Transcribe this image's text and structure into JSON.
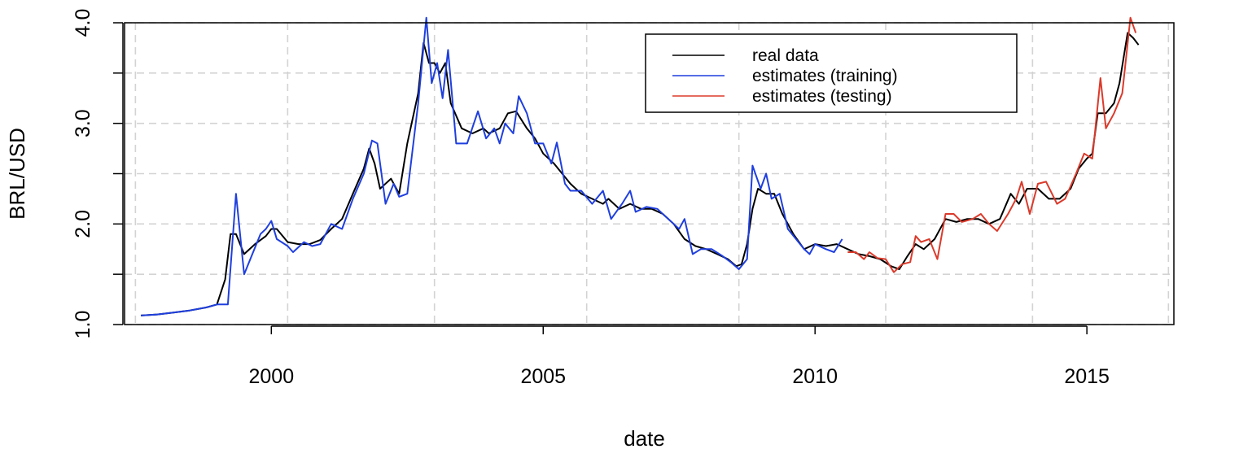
{
  "chart_data": {
    "type": "line",
    "xlabel": "date",
    "ylabel": "BRL/USD",
    "xlim": [
      1997.3,
      2016.6
    ],
    "ylim": [
      1.0,
      4.0
    ],
    "x_ticks": [
      2000,
      2005,
      2010,
      2015
    ],
    "x_tick_labels": [
      "2000",
      "2005",
      "2010",
      "2015"
    ],
    "y_ticks": [
      1.0,
      1.5,
      2.0,
      2.5,
      3.0,
      3.5,
      4.0
    ],
    "y_tick_labels": [
      "1.0",
      "",
      "2.0",
      "",
      "3.0",
      "",
      "4.0"
    ],
    "grid": true,
    "legend_position": "top-right",
    "series": [
      {
        "name": "real data",
        "color": "#000000",
        "points": [
          [
            1997.6,
            1.09
          ],
          [
            1997.9,
            1.1
          ],
          [
            1998.2,
            1.12
          ],
          [
            1998.5,
            1.14
          ],
          [
            1998.8,
            1.17
          ],
          [
            1999.0,
            1.2
          ],
          [
            1999.15,
            1.45
          ],
          [
            1999.25,
            1.9
          ],
          [
            1999.35,
            1.9
          ],
          [
            1999.5,
            1.7
          ],
          [
            1999.7,
            1.8
          ],
          [
            1999.9,
            1.88
          ],
          [
            2000.0,
            1.95
          ],
          [
            2000.1,
            1.95
          ],
          [
            2000.3,
            1.82
          ],
          [
            2000.5,
            1.8
          ],
          [
            2000.7,
            1.8
          ],
          [
            2000.9,
            1.84
          ],
          [
            2001.1,
            1.95
          ],
          [
            2001.3,
            2.05
          ],
          [
            2001.5,
            2.3
          ],
          [
            2001.7,
            2.55
          ],
          [
            2001.8,
            2.75
          ],
          [
            2001.9,
            2.6
          ],
          [
            2002.0,
            2.35
          ],
          [
            2002.2,
            2.45
          ],
          [
            2002.35,
            2.3
          ],
          [
            2002.5,
            2.8
          ],
          [
            2002.7,
            3.3
          ],
          [
            2002.8,
            3.8
          ],
          [
            2002.9,
            3.6
          ],
          [
            2003.0,
            3.6
          ],
          [
            2003.1,
            3.5
          ],
          [
            2003.2,
            3.6
          ],
          [
            2003.3,
            3.2
          ],
          [
            2003.5,
            2.95
          ],
          [
            2003.7,
            2.9
          ],
          [
            2003.9,
            2.95
          ],
          [
            2004.0,
            2.9
          ],
          [
            2004.2,
            2.95
          ],
          [
            2004.35,
            3.1
          ],
          [
            2004.5,
            3.12
          ],
          [
            2004.7,
            2.95
          ],
          [
            2004.85,
            2.85
          ],
          [
            2005.0,
            2.7
          ],
          [
            2005.2,
            2.6
          ],
          [
            2005.35,
            2.5
          ],
          [
            2005.5,
            2.4
          ],
          [
            2005.7,
            2.3
          ],
          [
            2005.9,
            2.25
          ],
          [
            2006.1,
            2.2
          ],
          [
            2006.2,
            2.25
          ],
          [
            2006.4,
            2.15
          ],
          [
            2006.6,
            2.2
          ],
          [
            2006.8,
            2.15
          ],
          [
            2007.0,
            2.15
          ],
          [
            2007.2,
            2.1
          ],
          [
            2007.4,
            2.0
          ],
          [
            2007.6,
            1.85
          ],
          [
            2007.8,
            1.78
          ],
          [
            2008.0,
            1.75
          ],
          [
            2008.2,
            1.7
          ],
          [
            2008.4,
            1.65
          ],
          [
            2008.55,
            1.58
          ],
          [
            2008.65,
            1.6
          ],
          [
            2008.75,
            1.8
          ],
          [
            2008.85,
            2.15
          ],
          [
            2008.95,
            2.35
          ],
          [
            2009.1,
            2.3
          ],
          [
            2009.25,
            2.3
          ],
          [
            2009.4,
            2.1
          ],
          [
            2009.6,
            1.9
          ],
          [
            2009.8,
            1.75
          ],
          [
            2010.0,
            1.8
          ],
          [
            2010.2,
            1.78
          ],
          [
            2010.4,
            1.8
          ],
          [
            2010.6,
            1.75
          ],
          [
            2010.8,
            1.7
          ],
          [
            2011.0,
            1.68
          ],
          [
            2011.2,
            1.65
          ],
          [
            2011.4,
            1.58
          ],
          [
            2011.55,
            1.55
          ],
          [
            2011.7,
            1.68
          ],
          [
            2011.85,
            1.8
          ],
          [
            2012.0,
            1.75
          ],
          [
            2012.2,
            1.85
          ],
          [
            2012.4,
            2.05
          ],
          [
            2012.6,
            2.02
          ],
          [
            2012.8,
            2.05
          ],
          [
            2013.0,
            2.05
          ],
          [
            2013.2,
            2.0
          ],
          [
            2013.4,
            2.05
          ],
          [
            2013.6,
            2.3
          ],
          [
            2013.75,
            2.2
          ],
          [
            2013.9,
            2.35
          ],
          [
            2014.1,
            2.35
          ],
          [
            2014.3,
            2.25
          ],
          [
            2014.5,
            2.25
          ],
          [
            2014.7,
            2.35
          ],
          [
            2014.85,
            2.55
          ],
          [
            2015.0,
            2.65
          ],
          [
            2015.1,
            2.7
          ],
          [
            2015.2,
            3.1
          ],
          [
            2015.35,
            3.1
          ],
          [
            2015.5,
            3.2
          ],
          [
            2015.6,
            3.4
          ],
          [
            2015.75,
            3.9
          ],
          [
            2015.85,
            3.85
          ],
          [
            2015.95,
            3.78
          ]
        ]
      },
      {
        "name": "estimates (training)",
        "color": "#1f3fde",
        "points": [
          [
            1997.6,
            1.09
          ],
          [
            1997.9,
            1.1
          ],
          [
            1998.2,
            1.12
          ],
          [
            1998.5,
            1.14
          ],
          [
            1998.8,
            1.17
          ],
          [
            1999.0,
            1.2
          ],
          [
            1999.2,
            1.2
          ],
          [
            1999.35,
            2.3
          ],
          [
            1999.5,
            1.5
          ],
          [
            1999.65,
            1.7
          ],
          [
            1999.8,
            1.9
          ],
          [
            1999.9,
            1.95
          ],
          [
            2000.0,
            2.03
          ],
          [
            2000.1,
            1.85
          ],
          [
            2000.3,
            1.78
          ],
          [
            2000.4,
            1.72
          ],
          [
            2000.6,
            1.82
          ],
          [
            2000.75,
            1.78
          ],
          [
            2000.9,
            1.8
          ],
          [
            2001.1,
            2.0
          ],
          [
            2001.3,
            1.95
          ],
          [
            2001.5,
            2.25
          ],
          [
            2001.7,
            2.5
          ],
          [
            2001.85,
            2.83
          ],
          [
            2001.95,
            2.8
          ],
          [
            2002.1,
            2.2
          ],
          [
            2002.25,
            2.4
          ],
          [
            2002.35,
            2.27
          ],
          [
            2002.5,
            2.3
          ],
          [
            2002.7,
            3.2
          ],
          [
            2002.85,
            4.05
          ],
          [
            2002.95,
            3.4
          ],
          [
            2003.05,
            3.6
          ],
          [
            2003.15,
            3.25
          ],
          [
            2003.25,
            3.73
          ],
          [
            2003.4,
            2.8
          ],
          [
            2003.6,
            2.8
          ],
          [
            2003.8,
            3.12
          ],
          [
            2003.95,
            2.85
          ],
          [
            2004.1,
            2.95
          ],
          [
            2004.2,
            2.8
          ],
          [
            2004.3,
            3.0
          ],
          [
            2004.45,
            2.9
          ],
          [
            2004.55,
            3.27
          ],
          [
            2004.7,
            3.1
          ],
          [
            2004.85,
            2.8
          ],
          [
            2005.0,
            2.8
          ],
          [
            2005.15,
            2.6
          ],
          [
            2005.25,
            2.81
          ],
          [
            2005.4,
            2.4
          ],
          [
            2005.5,
            2.33
          ],
          [
            2005.7,
            2.33
          ],
          [
            2005.9,
            2.2
          ],
          [
            2006.1,
            2.33
          ],
          [
            2006.25,
            2.05
          ],
          [
            2006.45,
            2.2
          ],
          [
            2006.6,
            2.33
          ],
          [
            2006.7,
            2.12
          ],
          [
            2006.9,
            2.17
          ],
          [
            2007.1,
            2.15
          ],
          [
            2007.3,
            2.05
          ],
          [
            2007.5,
            1.95
          ],
          [
            2007.6,
            2.05
          ],
          [
            2007.75,
            1.7
          ],
          [
            2007.9,
            1.75
          ],
          [
            2008.1,
            1.75
          ],
          [
            2008.3,
            1.68
          ],
          [
            2008.45,
            1.62
          ],
          [
            2008.6,
            1.55
          ],
          [
            2008.75,
            1.65
          ],
          [
            2008.85,
            2.58
          ],
          [
            2009.0,
            2.35
          ],
          [
            2009.1,
            2.5
          ],
          [
            2009.2,
            2.25
          ],
          [
            2009.35,
            2.3
          ],
          [
            2009.5,
            1.95
          ],
          [
            2009.65,
            1.85
          ],
          [
            2009.8,
            1.75
          ],
          [
            2009.9,
            1.7
          ],
          [
            2010.0,
            1.8
          ],
          [
            2010.2,
            1.75
          ],
          [
            2010.35,
            1.72
          ],
          [
            2010.5,
            1.85
          ]
        ]
      },
      {
        "name": "estimates (testing)",
        "color": "#db3a2b",
        "points": [
          [
            2010.6,
            1.72
          ],
          [
            2010.75,
            1.72
          ],
          [
            2010.9,
            1.65
          ],
          [
            2011.0,
            1.72
          ],
          [
            2011.15,
            1.66
          ],
          [
            2011.3,
            1.65
          ],
          [
            2011.45,
            1.52
          ],
          [
            2011.6,
            1.6
          ],
          [
            2011.75,
            1.62
          ],
          [
            2011.85,
            1.88
          ],
          [
            2011.95,
            1.82
          ],
          [
            2012.1,
            1.85
          ],
          [
            2012.25,
            1.65
          ],
          [
            2012.4,
            2.1
          ],
          [
            2012.55,
            2.1
          ],
          [
            2012.7,
            2.02
          ],
          [
            2012.9,
            2.05
          ],
          [
            2013.05,
            2.1
          ],
          [
            2013.2,
            2.0
          ],
          [
            2013.35,
            1.93
          ],
          [
            2013.55,
            2.1
          ],
          [
            2013.7,
            2.25
          ],
          [
            2013.8,
            2.42
          ],
          [
            2013.95,
            2.1
          ],
          [
            2014.1,
            2.4
          ],
          [
            2014.25,
            2.42
          ],
          [
            2014.45,
            2.2
          ],
          [
            2014.6,
            2.25
          ],
          [
            2014.8,
            2.5
          ],
          [
            2014.95,
            2.7
          ],
          [
            2015.1,
            2.65
          ],
          [
            2015.25,
            3.45
          ],
          [
            2015.35,
            2.95
          ],
          [
            2015.5,
            3.1
          ],
          [
            2015.65,
            3.3
          ],
          [
            2015.8,
            4.05
          ],
          [
            2015.9,
            3.9
          ]
        ]
      }
    ]
  }
}
